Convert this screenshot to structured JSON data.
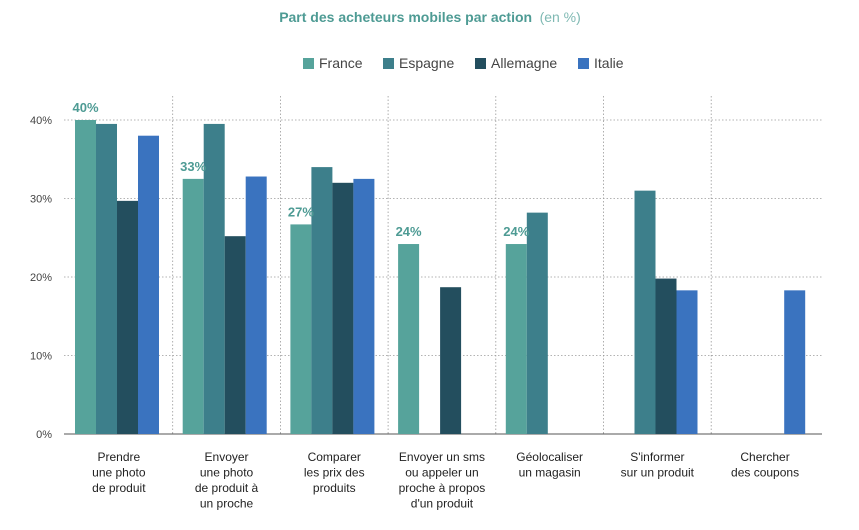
{
  "chart_data": {
    "type": "bar",
    "title_bold": "Part des acheteurs mobiles par action",
    "title_suffix": "(en %)",
    "categories": [
      [
        "Prendre",
        "une photo",
        "de produit"
      ],
      [
        "Envoyer",
        "une photo",
        "de produit à",
        "un proche"
      ],
      [
        "Comparer",
        "les prix des",
        "produits"
      ],
      [
        "Envoyer un sms",
        "ou appeler un",
        "proche à propos",
        "d'un produit"
      ],
      [
        "Géolocaliser",
        "un magasin"
      ],
      [
        "S'informer",
        "sur un produit"
      ],
      [
        "Chercher",
        "des coupons"
      ]
    ],
    "series": [
      {
        "name": "France",
        "color": "#56a39b",
        "values": [
          40,
          32.5,
          26.7,
          24.2,
          24.2,
          null,
          null
        ]
      },
      {
        "name": "Espagne",
        "color": "#3d7f8b",
        "values": [
          39.5,
          39.5,
          34,
          null,
          28.2,
          31,
          null
        ]
      },
      {
        "name": "Allemagne",
        "color": "#234e5e",
        "values": [
          29.7,
          25.2,
          32,
          18.7,
          null,
          19.8,
          null
        ]
      },
      {
        "name": "Italie",
        "color": "#3a73bf",
        "values": [
          38,
          32.8,
          32.5,
          null,
          null,
          18.3,
          18.3
        ]
      }
    ],
    "data_labels": [
      {
        "category": 0,
        "series": 0,
        "text": "40%"
      },
      {
        "category": 1,
        "series": 0,
        "text": "33%"
      },
      {
        "category": 2,
        "series": 0,
        "text": "27%"
      },
      {
        "category": 3,
        "series": 0,
        "text": "24%"
      },
      {
        "category": 4,
        "series": 0,
        "text": "24%"
      }
    ],
    "yticks": [
      0,
      10,
      20,
      30,
      40
    ],
    "ytick_labels": [
      "0%",
      "10%",
      "20%",
      "30%",
      "40%"
    ],
    "ylim": [
      0,
      40
    ],
    "grid": true,
    "legend_position": "top-center"
  }
}
